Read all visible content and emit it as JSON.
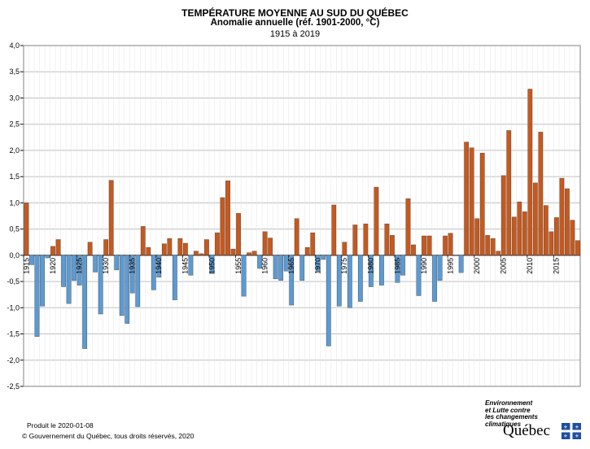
{
  "header": {
    "title": "TEMPÉRATURE MOYENNE AU SUD DU QUÉBEC",
    "subtitle": "Anomalie annuelle (réf. 1901-2000, °C)",
    "period": "1915 à 2019"
  },
  "footer": {
    "produced": "Produit le 2020-01-08",
    "copyright": "© Gouvernement du Québec, tous droits réservés, 2020"
  },
  "logo": {
    "ministry_lines": [
      "Environnement",
      "et Lutte contre",
      "les changements",
      "climatiques"
    ],
    "wordmark": "Québec"
  },
  "colors": {
    "positive": "#C8581C",
    "negative": "#5B9BD5",
    "grid": "#BFBFBF",
    "axis": "#000000"
  },
  "chart_data": {
    "type": "bar",
    "title": "TEMPÉRATURE MOYENNE AU SUD DU QUÉBEC",
    "subtitle": "Anomalie annuelle (réf. 1901-2000, °C)",
    "period": "1915 à 2019",
    "xlabel": "",
    "ylabel": "",
    "ylim": [
      -2.5,
      4.0
    ],
    "yticks": [
      "-2,5",
      "-2,0",
      "-1,5",
      "-1,0",
      "-0,5",
      "0,0",
      "0,5",
      "1,0",
      "1,5",
      "2,0",
      "2,5",
      "3,0",
      "3,5",
      "4,0"
    ],
    "xticks": [
      "1915",
      "1920",
      "1925",
      "1930",
      "1935",
      "1940",
      "1945",
      "1950",
      "1955",
      "1960",
      "1965",
      "1970",
      "1975",
      "1980",
      "1985",
      "1990",
      "1995",
      "2000",
      "2005",
      "2010",
      "2015"
    ],
    "grid": true,
    "legend": "none",
    "x_start": 1915,
    "values": [
      1.0,
      -0.18,
      -1.55,
      -0.97,
      -0.05,
      0.17,
      0.3,
      -0.6,
      -0.92,
      -0.48,
      -0.57,
      -1.78,
      0.25,
      -0.32,
      -1.12,
      0.3,
      1.43,
      -0.28,
      -1.15,
      -1.3,
      -0.72,
      -0.98,
      0.55,
      0.15,
      -0.66,
      -0.42,
      0.22,
      0.32,
      -0.85,
      0.32,
      0.23,
      -0.38,
      0.08,
      0.03,
      0.3,
      -0.35,
      0.43,
      1.1,
      1.42,
      0.12,
      0.8,
      -0.78,
      0.05,
      0.08,
      -0.25,
      0.45,
      0.33,
      -0.45,
      -0.48,
      -0.3,
      -0.95,
      0.7,
      -0.48,
      0.15,
      0.43,
      -0.3,
      -0.08,
      -1.73,
      0.96,
      -0.97,
      0.25,
      -1.0,
      0.58,
      -0.88,
      0.6,
      -0.6,
      1.3,
      -0.57,
      0.6,
      0.38,
      -0.52,
      -0.38,
      1.08,
      0.2,
      -0.77,
      0.37,
      0.37,
      -0.88,
      -0.48,
      0.37,
      0.42,
      0.0,
      -0.33,
      2.16,
      2.05,
      0.7,
      1.95,
      0.38,
      0.32,
      0.08,
      1.52,
      2.38,
      0.73,
      1.02,
      0.83,
      3.17,
      1.38,
      2.35,
      0.95,
      0.45,
      0.72,
      1.47,
      1.27,
      0.67,
      0.28
    ]
  }
}
